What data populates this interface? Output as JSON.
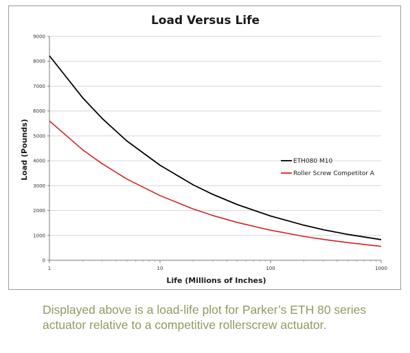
{
  "chart_data": {
    "type": "line",
    "title": "Load Versus Life",
    "xlabel": "Life (Millions of Inches)",
    "ylabel": "Load (Pounds)",
    "x_scale": "log",
    "xlim": [
      1,
      1000
    ],
    "ylim": [
      0,
      9000
    ],
    "x_ticks": [
      1,
      10,
      100,
      1000
    ],
    "y_ticks": [
      0,
      1000,
      2000,
      3000,
      4000,
      5000,
      6000,
      7000,
      8000,
      9000
    ],
    "grid": "horizontal",
    "legend_position": "right",
    "series": [
      {
        "name": "ETH080 M10",
        "color": "#000000",
        "x": [
          1,
          2,
          3,
          5,
          10,
          20,
          30,
          50,
          100,
          200,
          300,
          500,
          1000
        ],
        "y": [
          8220,
          6530,
          5700,
          4800,
          3820,
          3030,
          2650,
          2240,
          1780,
          1410,
          1230,
          1040,
          830
        ]
      },
      {
        "name": "Roller Screw Competitor A",
        "color": "#d62020",
        "x": [
          1,
          2,
          3,
          5,
          10,
          20,
          30,
          50,
          100,
          200,
          300,
          500,
          1000
        ],
        "y": [
          5600,
          4440,
          3880,
          3270,
          2600,
          2060,
          1800,
          1520,
          1210,
          960,
          840,
          710,
          560
        ]
      }
    ]
  },
  "caption": "Displayed above is a load-life plot for Parker’s ETH 80 series actuator relative to a competitive rollerscrew actuator."
}
